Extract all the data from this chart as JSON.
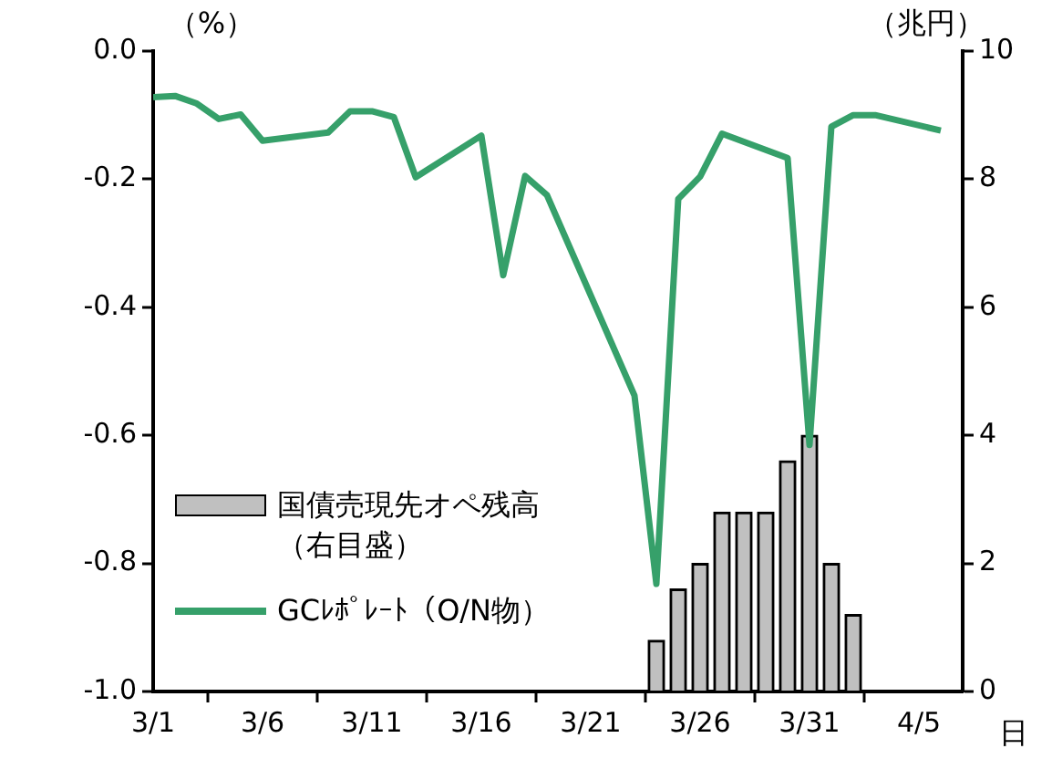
{
  "chart_data": {
    "type": "line",
    "ylabel": "（%）",
    "y2label": "（兆円）",
    "xlabel": "日",
    "x": [
      "--03-01",
      "--03-02",
      "--03-03",
      "--03-04",
      "--03-05",
      "--03-06",
      "--03-09",
      "--03-10",
      "--03-11",
      "--03-12",
      "--03-13",
      "--03-16",
      "--03-17",
      "--03-18",
      "--03-19",
      "--03-23",
      "--03-24",
      "--03-25",
      "--03-26",
      "--03-27",
      "--03-30",
      "--03-31",
      "--04-01",
      "--04-02",
      "--04-03",
      "--04-06"
    ],
    "series": [
      {
        "name": "国債売現先オペ残高（右目盛）",
        "type": "bar",
        "axis": "y2",
        "color": "#c0c0c0",
        "x": [
          "--03-24",
          "--03-25",
          "--03-26",
          "--03-27",
          "--03-28",
          "--03-29",
          "--03-30",
          "--03-31",
          "--04-01",
          "--04-02"
        ],
        "values": [
          0.8,
          1.6,
          2.0,
          2.8,
          2.8,
          2.8,
          3.6,
          4.0,
          2.0,
          1.2
        ]
      },
      {
        "name": "GCﾚﾎﾟﾚｰﾄ（O/N物）",
        "color": "#36a06a",
        "values": [
          -0.072,
          -0.07,
          -0.082,
          -0.106,
          -0.099,
          -0.14,
          -0.127,
          -0.094,
          -0.094,
          -0.103,
          -0.197,
          -0.132,
          -0.35,
          -0.195,
          -0.225,
          -0.538,
          -0.832,
          -0.231,
          -0.196,
          -0.129,
          -0.167,
          -0.615,
          -0.118,
          -0.1,
          -0.1,
          -0.124
        ]
      }
    ],
    "xlim": [
      "--03-01",
      "--04-07"
    ],
    "xticks": [
      {
        "value": "--03-01",
        "label": "3/1"
      },
      {
        "value": "--03-06",
        "label": "3/6"
      },
      {
        "value": "--03-11",
        "label": "3/11"
      },
      {
        "value": "--03-16",
        "label": "3/16"
      },
      {
        "value": "--03-21",
        "label": "3/21"
      },
      {
        "value": "--03-26",
        "label": "3/26"
      },
      {
        "value": "--03-31",
        "label": "3/31"
      },
      {
        "value": "--04-05",
        "label": "4/5"
      }
    ],
    "ylim": [
      -1.0,
      0.0
    ],
    "yticks": [
      {
        "value": -1.0,
        "label": "-1.0"
      },
      {
        "value": -0.8,
        "label": "-0.8"
      },
      {
        "value": -0.6,
        "label": "-0.6"
      },
      {
        "value": -0.4,
        "label": "-0.4"
      },
      {
        "value": -0.2,
        "label": "-0.2"
      },
      {
        "value": 0.0,
        "label": "0.0"
      }
    ],
    "y2lim": [
      0,
      10
    ],
    "y2ticks": [
      0,
      2,
      4,
      6,
      8,
      10
    ],
    "legend": "bottom left",
    "grid": false,
    "marker": "none",
    "line_style": "solid"
  }
}
